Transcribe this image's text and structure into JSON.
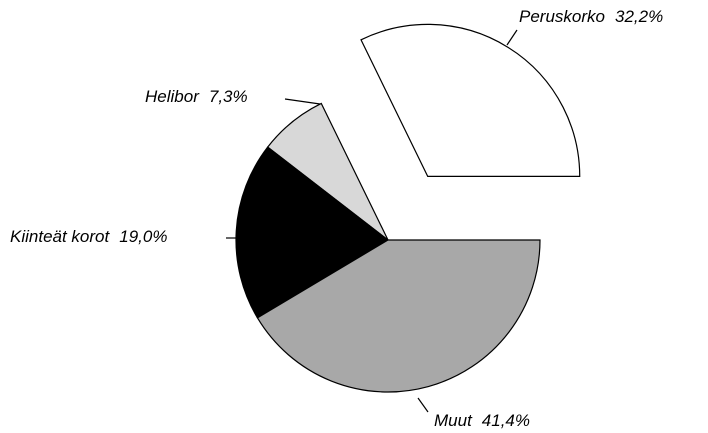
{
  "chart_data": {
    "type": "pie",
    "categories": [
      "Peruskorko",
      "Helibor",
      "Kiinteät korot",
      "Muut"
    ],
    "values": [
      32.2,
      7.3,
      19.0,
      41.4
    ],
    "value_labels": [
      "32,2%",
      "7,3%",
      "19,0%",
      "41,4%"
    ],
    "colors": [
      "#ffffff",
      "#d8d8d8",
      "#000000",
      "#a8a8a8"
    ],
    "explode": [
      true,
      false,
      false,
      false
    ]
  }
}
